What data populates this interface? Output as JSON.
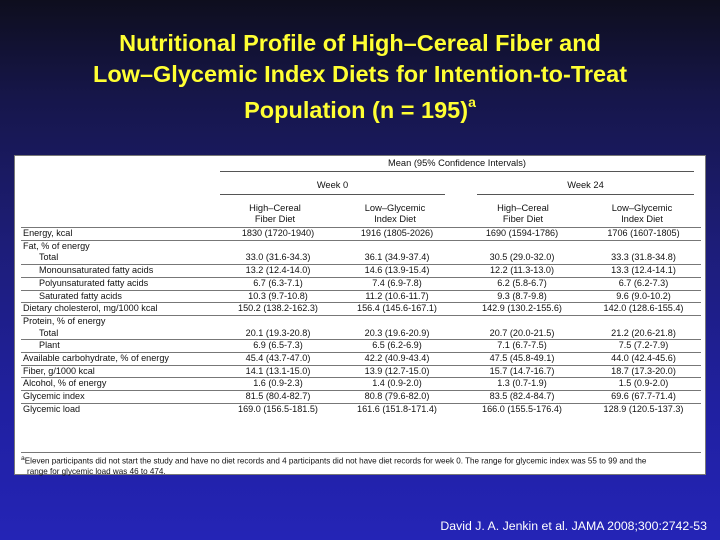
{
  "title": {
    "line1": "Nutritional Profile of High–Cereal Fiber and",
    "line2": "Low–Glycemic Index Diets for Intention-to-Treat",
    "line3": "Population (n = 195)",
    "superscript": "a"
  },
  "table": {
    "super_header": "Mean (95% Confidence Intervals)",
    "week0": "Week 0",
    "week24": "Week 24",
    "col_fiber_l1": "High–Cereal",
    "col_fiber_l2": "Fiber Diet",
    "col_gi_l1": "Low–Glycemic",
    "col_gi_l2": "Index Diet",
    "rows": [
      {
        "label": "Energy, kcal",
        "indent": false,
        "rule": true,
        "values": [
          "1830 (1720-1940)",
          "1916 (1805-2026)",
          "1690 (1594-1786)",
          "1706 (1607-1805)"
        ]
      },
      {
        "label": "Fat, % of energy",
        "indent": false,
        "rule": true,
        "values": [
          "",
          "",
          "",
          ""
        ]
      },
      {
        "label": "Total",
        "indent": true,
        "rule": false,
        "values": [
          "33.0 (31.6-34.3)",
          "36.1 (34.9-37.4)",
          "30.5 (29.0-32.0)",
          "33.3 (31.8-34.8)"
        ]
      },
      {
        "label": "Monounsaturated fatty acids",
        "indent": true,
        "rule": true,
        "values": [
          "13.2 (12.4-14.0)",
          "14.6 (13.9-15.4)",
          "12.2 (11.3-13.0)",
          "13.3 (12.4-14.1)"
        ]
      },
      {
        "label": "Polyunsaturated fatty acids",
        "indent": true,
        "rule": true,
        "values": [
          "6.7 (6.3-7.1)",
          "7.4 (6.9-7.8)",
          "6.2 (5.8-6.7)",
          "6.7 (6.2-7.3)"
        ]
      },
      {
        "label": "Saturated fatty acids",
        "indent": true,
        "rule": true,
        "values": [
          "10.3 (9.7-10.8)",
          "11.2 (10.6-11.7)",
          "9.3 (8.7-9.8)",
          "9.6 (9.0-10.2)"
        ]
      },
      {
        "label": "Dietary cholesterol, mg/1000 kcal",
        "indent": false,
        "rule": true,
        "values": [
          "150.2 (138.2-162.3)",
          "156.4 (145.6-167.1)",
          "142.9 (130.2-155.6)",
          "142.0 (128.6-155.4)"
        ]
      },
      {
        "label": "Protein, % of energy",
        "indent": false,
        "rule": true,
        "values": [
          "",
          "",
          "",
          ""
        ]
      },
      {
        "label": "Total",
        "indent": true,
        "rule": false,
        "values": [
          "20.1 (19.3-20.8)",
          "20.3 (19.6-20.9)",
          "20.7 (20.0-21.5)",
          "21.2 (20.6-21.8)"
        ]
      },
      {
        "label": "Plant",
        "indent": true,
        "rule": true,
        "values": [
          "6.9 (6.5-7.3)",
          "6.5 (6.2-6.9)",
          "7.1 (6.7-7.5)",
          "7.5 (7.2-7.9)"
        ]
      },
      {
        "label": "Available carbohydrate, % of energy",
        "indent": false,
        "rule": true,
        "values": [
          "45.4 (43.7-47.0)",
          "42.2 (40.9-43.4)",
          "47.5 (45.8-49.1)",
          "44.0 (42.4-45.6)"
        ]
      },
      {
        "label": "Fiber, g/1000 kcal",
        "indent": false,
        "rule": true,
        "values": [
          "14.1 (13.1-15.0)",
          "13.9 (12.7-15.0)",
          "15.7 (14.7-16.7)",
          "18.7 (17.3-20.0)"
        ]
      },
      {
        "label": "Alcohol, % of energy",
        "indent": false,
        "rule": true,
        "values": [
          "1.6 (0.9-2.3)",
          "1.4 (0.9-2.0)",
          "1.3 (0.7-1.9)",
          "1.5 (0.9-2.0)"
        ]
      },
      {
        "label": "Glycemic index",
        "indent": false,
        "rule": true,
        "values": [
          "81.5 (80.4-82.7)",
          "80.8 (79.6-82.0)",
          "83.5 (82.4-84.7)",
          "69.6 (67.7-71.4)"
        ]
      },
      {
        "label": "Glycemic load",
        "indent": false,
        "rule": true,
        "values": [
          "169.0 (156.5-181.5)",
          "161.6 (151.8-171.4)",
          "166.0 (155.5-176.4)",
          "128.9 (120.5-137.3)"
        ]
      }
    ],
    "footnote_marker": "a",
    "footnote_line1": "Eleven participants did not start the study and have no diet records and 4 participants did not have diet records for week 0. The range for glycemic index was 55 to 99 and the",
    "footnote_line2": "range for glycemic load was 46 to 474."
  },
  "citation": "David J. A. Jenkin et al. JAMA 2008;300:2742-53"
}
